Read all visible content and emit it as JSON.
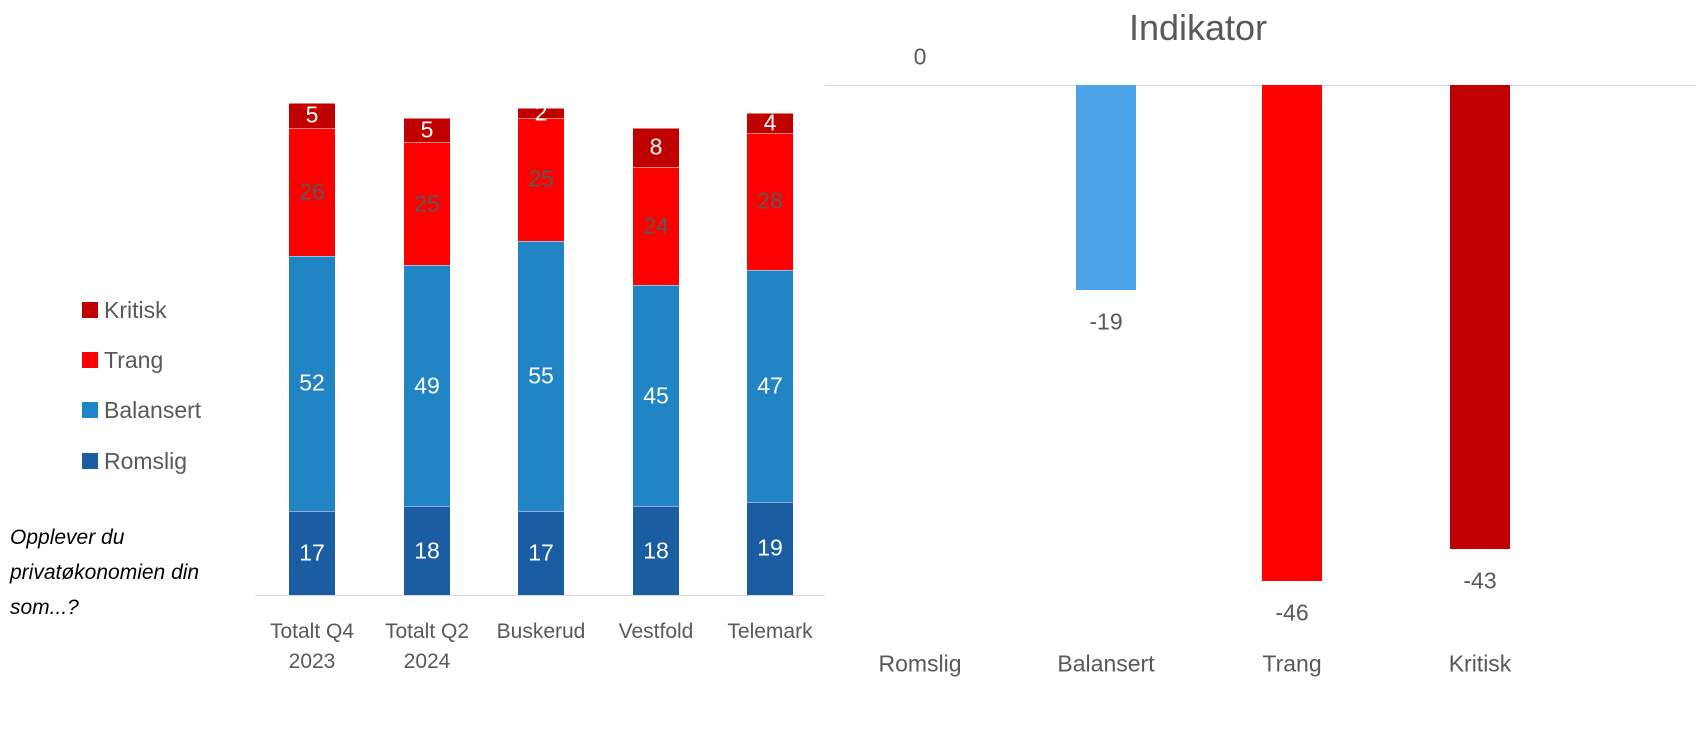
{
  "chart_data": [
    {
      "type": "stacked-bar",
      "annotation": "Opplever du privatøkonomien din som...?",
      "categories": [
        "Totalt Q4 2023",
        "Totalt Q2 2024",
        "Buskerud",
        "Vestfold",
        "Telemark"
      ],
      "series": [
        {
          "name": "Romslig",
          "color": "#1a5da3",
          "label_color": "#ffffff",
          "values": [
            17,
            18,
            17,
            18,
            19
          ]
        },
        {
          "name": "Balansert",
          "color": "#2184c4",
          "label_color": "#ffffff",
          "values": [
            52,
            49,
            55,
            45,
            47
          ]
        },
        {
          "name": "Trang",
          "color": "#ff0000",
          "label_color": "#595959",
          "values": [
            26,
            25,
            25,
            24,
            28
          ]
        },
        {
          "name": "Kritisk",
          "color": "#c00000",
          "label_color": "#ffffff",
          "values": [
            5,
            5,
            2,
            8,
            4
          ]
        }
      ]
    },
    {
      "type": "bar",
      "title": "Indikator",
      "categories": [
        "Romslig",
        "Balansert",
        "Trang",
        "Kritisk"
      ],
      "values": [
        0,
        -19,
        -46,
        -43
      ],
      "colors": [
        "#1a5da3",
        "#4da3ea",
        "#ff0000",
        "#c00000"
      ]
    }
  ]
}
